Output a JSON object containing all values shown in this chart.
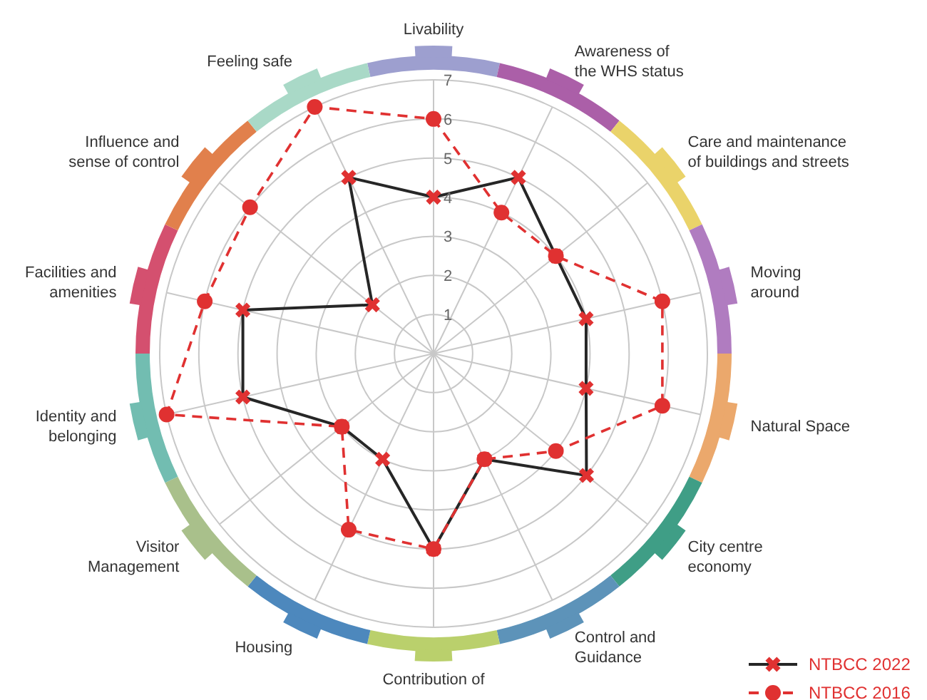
{
  "chart_data": {
    "type": "radar",
    "categories": [
      "Livability",
      "Awareness of\nthe WHS status",
      "Care and maintenance\nof buildings and streets",
      "Moving\naround",
      "Natural Space",
      "City centre\neconomy",
      "Control and\nGuidance",
      "Contribution of",
      "Housing",
      "Visitor\nManagement",
      "Identity and\nbelonging",
      "Facilities and\namenities",
      "Influence and\nsense of control",
      "Feeling safe"
    ],
    "series": [
      {
        "name": "NTBCC 2022",
        "color": "#262626",
        "marker": "cross",
        "line_style": "solid",
        "values": [
          4,
          5,
          4,
          4,
          4,
          5,
          3,
          5,
          3,
          3,
          5,
          5,
          2,
          5
        ]
      },
      {
        "name": "NTBCC 2016",
        "color": "#e03131",
        "marker": "circle",
        "line_style": "dashed",
        "values": [
          6,
          4,
          4,
          6,
          6,
          4,
          3,
          5,
          5,
          3,
          7,
          6,
          6,
          7
        ]
      }
    ],
    "ylim": [
      0,
      7
    ],
    "yticks": [
      1,
      2,
      3,
      4,
      5,
      6,
      7
    ],
    "grid": true,
    "legend": "bottom right"
  }
}
